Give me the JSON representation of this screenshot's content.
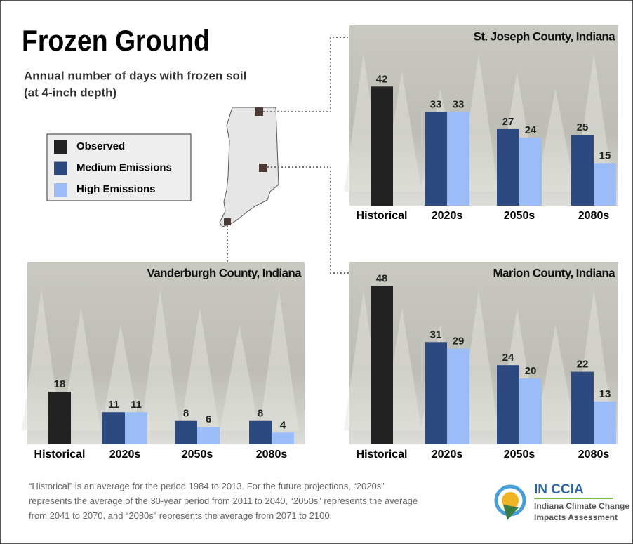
{
  "title": "Frozen Ground",
  "subtitle": [
    "Annual number of days with frozen soil",
    "(at 4-inch depth)"
  ],
  "legend": [
    {
      "name": "Observed",
      "color": "#222222"
    },
    {
      "name": "Medium Emissions",
      "color": "#2d4a80"
    },
    {
      "name": "High Emissions",
      "color": "#9cbcf7"
    }
  ],
  "footnote": "“Historical” is an average for the period 1984 to 2013. For the future projections, “2020s” represents the average of the 30-year period from 2011 to 2040, “2050s” represents the average from 2041 to 2070, and “2080s” represents the average from 2071 to 2100.",
  "logo": {
    "name": "IN CCIA",
    "lines": [
      "Indiana Climate Change",
      "Impacts Assessment"
    ]
  },
  "chart_data": [
    {
      "type": "bar",
      "title": "St. Joseph County, Indiana",
      "categories": [
        "Historical",
        "2020s",
        "2050s",
        "2080s"
      ],
      "ylim": [
        0,
        50
      ],
      "series": [
        {
          "values": [
            42,
            null,
            null,
            null
          ]
        },
        {
          "values": [
            null,
            33,
            27,
            25
          ]
        },
        {
          "values": [
            null,
            33,
            24,
            15
          ]
        }
      ]
    },
    {
      "type": "bar",
      "title": "Vanderburgh County, Indiana",
      "categories": [
        "Historical",
        "2020s",
        "2050s",
        "2080s"
      ],
      "ylim": [
        0,
        50
      ],
      "series": [
        {
          "values": [
            18,
            null,
            null,
            null
          ]
        },
        {
          "values": [
            null,
            11,
            8,
            8
          ]
        },
        {
          "values": [
            null,
            11,
            6,
            4
          ]
        }
      ]
    },
    {
      "type": "bar",
      "title": "Marion County, Indiana",
      "categories": [
        "Historical",
        "2020s",
        "2050s",
        "2080s"
      ],
      "ylim": [
        0,
        50
      ],
      "series": [
        {
          "values": [
            48,
            null,
            null,
            null
          ]
        },
        {
          "values": [
            null,
            31,
            24,
            22
          ]
        },
        {
          "values": [
            null,
            29,
            20,
            13
          ]
        }
      ]
    }
  ]
}
